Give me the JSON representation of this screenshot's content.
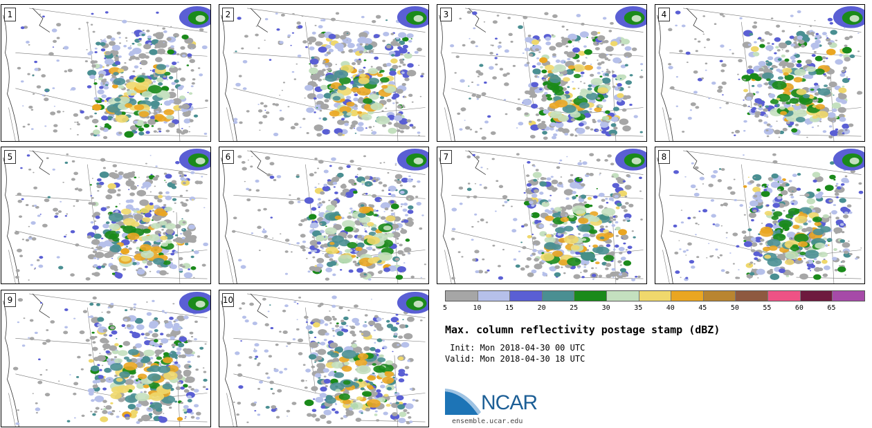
{
  "panels": [
    {
      "label": "1",
      "seed": 11
    },
    {
      "label": "2",
      "seed": 23
    },
    {
      "label": "3",
      "seed": 37
    },
    {
      "label": "4",
      "seed": 41
    },
    {
      "label": "5",
      "seed": 53
    },
    {
      "label": "6",
      "seed": 67
    },
    {
      "label": "7",
      "seed": 71
    },
    {
      "label": "8",
      "seed": 83
    },
    {
      "label": "9",
      "seed": 97
    },
    {
      "label": "10",
      "seed": 101
    }
  ],
  "colorbar": {
    "colors": [
      "#a6a6a6",
      "#b6c0ea",
      "#5a5fd4",
      "#4a8f92",
      "#1a8a1a",
      "#c4e0bf",
      "#efd86c",
      "#eaa622",
      "#b98530",
      "#8e5940",
      "#ee5285",
      "#6e1a3e",
      "#a64aa8"
    ],
    "ticks": [
      "5",
      "10",
      "15",
      "20",
      "25",
      "30",
      "35",
      "40",
      "45",
      "50",
      "55",
      "60",
      "65"
    ]
  },
  "title": "Max. column reflectivity postage stamp (dBZ)",
  "init_line": " Init: Mon 2018-04-30 00 UTC",
  "valid_line": "Valid: Mon 2018-04-30 18 UTC",
  "logo": {
    "name": "NCAR",
    "url": "ensemble.ucar.edu"
  }
}
